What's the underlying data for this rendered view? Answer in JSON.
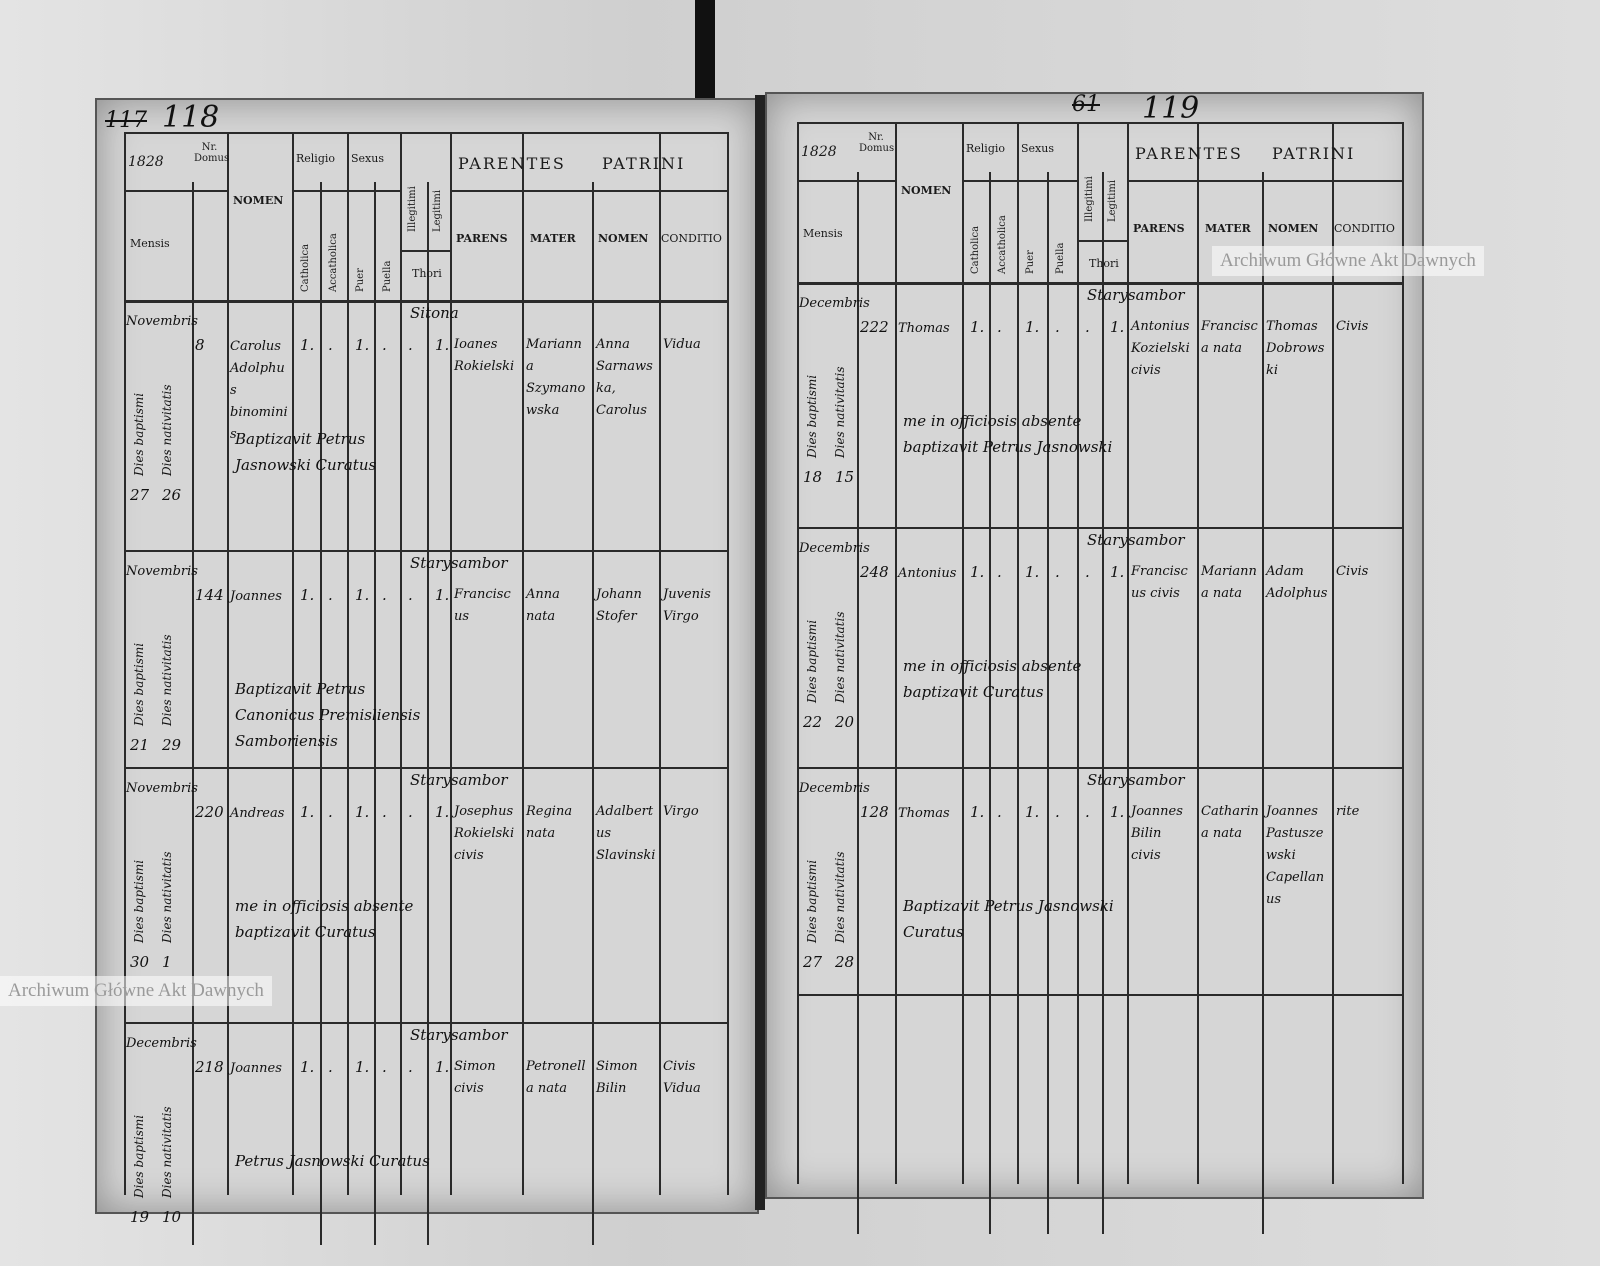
{
  "watermark": "Archiwum Główne Akt Dawnych",
  "left_page": {
    "page_number": "118",
    "old_page_number": "117",
    "year": "1828",
    "headers": {
      "nr_domus": "Nr. Domus",
      "mensis": "Mensis",
      "nomen": "NOMEN",
      "religio": "Religio",
      "catholica": "Catholica",
      "accatholica": "Accatholica",
      "sexus": "Sexus",
      "puer": "Puer",
      "puella": "Puella",
      "illegitimi": "Illegitimi",
      "legitimi": "Legitimi",
      "thori": "Thori",
      "parentes": "PARENTES",
      "parens": "PARENS",
      "mater": "MATER",
      "patrini": "PATRINI",
      "patrini_nomen": "NOMEN",
      "conditio": "CONDITIO"
    },
    "entries": [
      {
        "mensis": "Novembris",
        "dies_baptismi": "Dies baptismi",
        "dies_nativitatis": "Dies nativitatis",
        "day_b": "27",
        "day_n": "26",
        "domus": "8",
        "nomen": "Carolus Adolphus binominis",
        "place": "Sitona",
        "marks": "1. . 1. . . 1.",
        "parens": "Ioanes Rokielski",
        "mater": "Marianna Szymanowska",
        "patrini": "Anna Sarnawska, Carolus",
        "conditio": "Vidua",
        "note": "Baptizavit Petrus Jasnowski Curatus"
      },
      {
        "mensis": "Novembris",
        "dies_baptismi": "Dies baptismi",
        "dies_nativitatis": "Dies nativitatis",
        "day_b": "21",
        "day_n": "29",
        "domus": "144",
        "nomen": "Joannes",
        "place": "Starysambor",
        "marks": "1. . 1. . . 1.",
        "parens": "Franciscus",
        "mater": "Anna nata",
        "patrini": "Johann Stofer",
        "conditio": "Juvenis Virgo",
        "note": "Baptizavit Petrus Canonicus Premisliensis Samboriensis"
      },
      {
        "mensis": "Novembris",
        "dies_baptismi": "Dies baptismi",
        "dies_nativitatis": "Dies nativitatis",
        "day_b": "30",
        "day_n": "1",
        "domus": "220",
        "nomen": "Andreas",
        "place": "Starysambor",
        "marks": "1. . 1. . . 1.",
        "parens": "Josephus Rokielski civis",
        "mater": "Regina nata",
        "patrini": "Adalbertus Slavinski",
        "conditio": "Virgo",
        "note": "me in officiosis absente baptizavit Curatus"
      },
      {
        "mensis": "Decembris",
        "dies_baptismi": "Dies baptismi",
        "dies_nativitatis": "Dies nativitatis",
        "day_b": "19",
        "day_n": "10",
        "domus": "218",
        "nomen": "Joannes",
        "place": "Starysambor",
        "marks": "1. . 1. . . 1.",
        "parens": "Simon civis",
        "mater": "Petronella nata",
        "patrini": "Simon Bilin",
        "conditio": "Civis Vidua",
        "note": "Petrus Jasnowski Curatus"
      }
    ]
  },
  "right_page": {
    "page_number": "119",
    "old_page_number": "61",
    "year": "1828",
    "headers": {
      "nr_domus": "Nr. Domus",
      "mensis": "Mensis",
      "nomen": "NOMEN",
      "religio": "Religio",
      "catholica": "Catholica",
      "accatholica": "Accatholica",
      "sexus": "Sexus",
      "puer": "Puer",
      "puella": "Puella",
      "illegitimi": "Illegitimi",
      "legitimi": "Legitimi",
      "thori": "Thori",
      "parentes": "PARENTES",
      "parens": "PARENS",
      "mater": "MATER",
      "patrini": "PATRINI",
      "patrini_nomen": "NOMEN",
      "conditio": "CONDITIO"
    },
    "entries": [
      {
        "mensis": "Decembris",
        "dies_baptismi": "Dies baptismi",
        "dies_nativitatis": "Dies nativitatis",
        "day_b": "18",
        "day_n": "15",
        "domus": "222",
        "nomen": "Thomas",
        "place": "Starysambor",
        "marks": "1. . 1. . . 1.",
        "parens": "Antonius Kozielski civis",
        "mater": "Francisca nata",
        "patrini": "Thomas Dobrowski",
        "conditio": "Civis",
        "note": "me in officiosis absente baptizavit Petrus Jasnowski"
      },
      {
        "mensis": "Decembris",
        "dies_baptismi": "Dies baptismi",
        "dies_nativitatis": "Dies nativitatis",
        "day_b": "22",
        "day_n": "20",
        "domus": "248",
        "nomen": "Antonius",
        "place": "Starysambor",
        "marks": "1. . 1. . . 1.",
        "parens": "Franciscus civis",
        "mater": "Marianna nata",
        "patrini": "Adam Adolphus",
        "conditio": "Civis",
        "note": "me in officiosis absente baptizavit Curatus"
      },
      {
        "mensis": "Decembris",
        "dies_baptismi": "Dies baptismi",
        "dies_nativitatis": "Dies nativitatis",
        "day_b": "27",
        "day_n": "28",
        "domus": "128",
        "nomen": "Thomas",
        "place": "Starysambor",
        "marks": "1. . 1. . . 1.",
        "parens": "Joannes Bilin civis",
        "mater": "Catharina nata",
        "patrini": "Joannes Pastuszewski Capellanus",
        "conditio": "rite",
        "note": "Baptizavit Petrus Jasnowski Curatus"
      }
    ]
  }
}
